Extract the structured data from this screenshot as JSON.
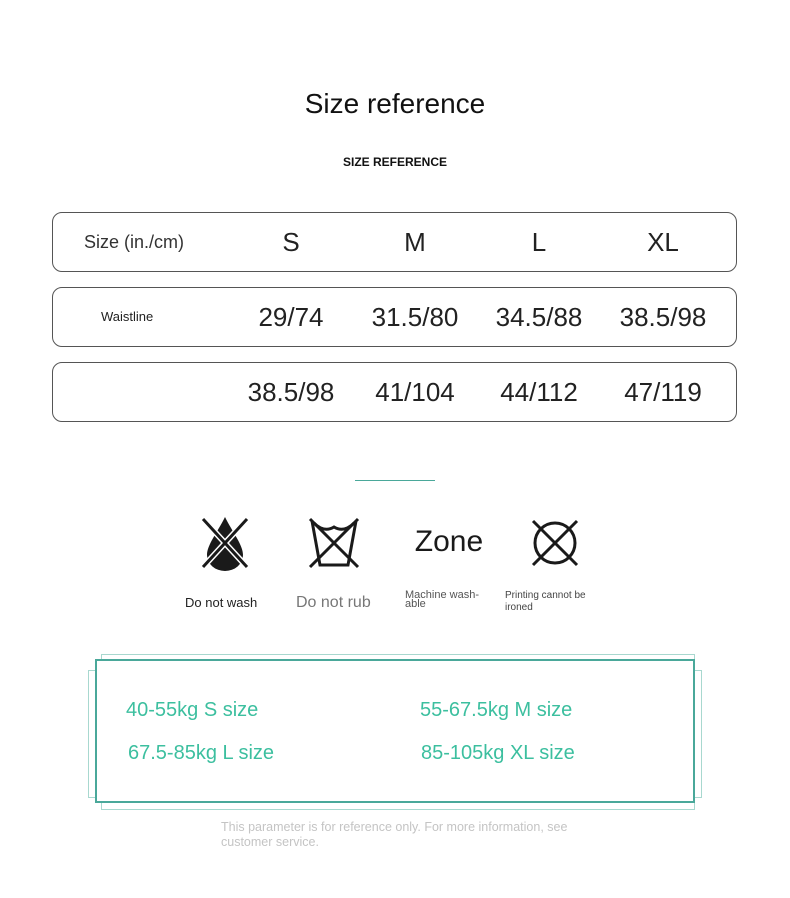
{
  "title": "Size reference",
  "subtitle": "SIZE REFERENCE",
  "table": {
    "header": {
      "label": "Size (in./cm)",
      "values": [
        "S",
        "M",
        "L",
        "XL"
      ]
    },
    "rows": [
      {
        "label": "Waistline",
        "values": [
          "29/74",
          "31.5/80",
          "34.5/88",
          "38.5/98"
        ]
      },
      {
        "label": "",
        "values": [
          "38.5/98",
          "41/104",
          "44/112",
          "47/119"
        ]
      }
    ]
  },
  "care": [
    {
      "icon": "no-water-drop-icon",
      "label": "Do not wash"
    },
    {
      "icon": "no-handwash-basin-icon",
      "label": "Do not rub"
    },
    {
      "icon": "zone-text",
      "text": "Zone",
      "label": "Machine wash-able"
    },
    {
      "icon": "no-circle-x-icon",
      "label": "Printing cannot be ironed"
    }
  ],
  "weights": [
    "40-55kg S size",
    "55-67.5kg M size",
    "67.5-85kg L size",
    "85-105kg XL size"
  ],
  "note": "This parameter is for reference only. For more information, see customer service.",
  "colors": {
    "accent": "#3cbf9f",
    "frame": "#4aa89a"
  }
}
